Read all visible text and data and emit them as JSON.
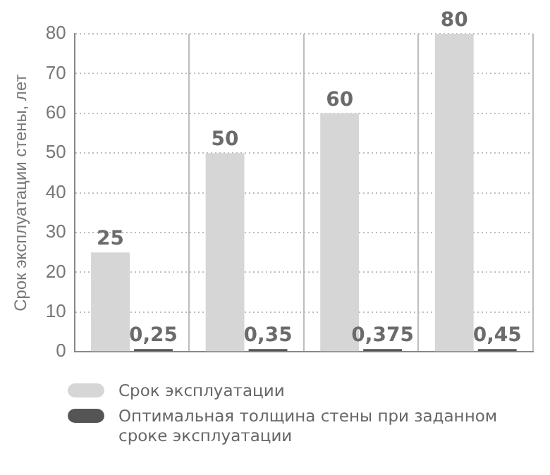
{
  "chart_data": {
    "type": "bar",
    "ylabel": "Срок эксплуатации стены, лет",
    "categories": [
      null,
      null,
      null,
      null
    ],
    "series": [
      {
        "name": "Срок эксплуатации",
        "color": "#d6d6d6",
        "values": [
          25,
          50,
          60,
          80
        ],
        "value_labels": [
          "25",
          "50",
          "60",
          "80"
        ]
      },
      {
        "name": "Оптимальная толщина стены при заданном сроке эксплуатации",
        "color": "#555555",
        "values": [
          0.25,
          0.35,
          0.375,
          0.45
        ],
        "value_labels": [
          "0,25",
          "0,35",
          "0,375",
          "0,45"
        ]
      }
    ],
    "ylim": [
      0,
      80
    ],
    "yticks": [
      0,
      10,
      20,
      30,
      40,
      50,
      60,
      70,
      80
    ],
    "grid": true,
    "legend": "bottom"
  }
}
